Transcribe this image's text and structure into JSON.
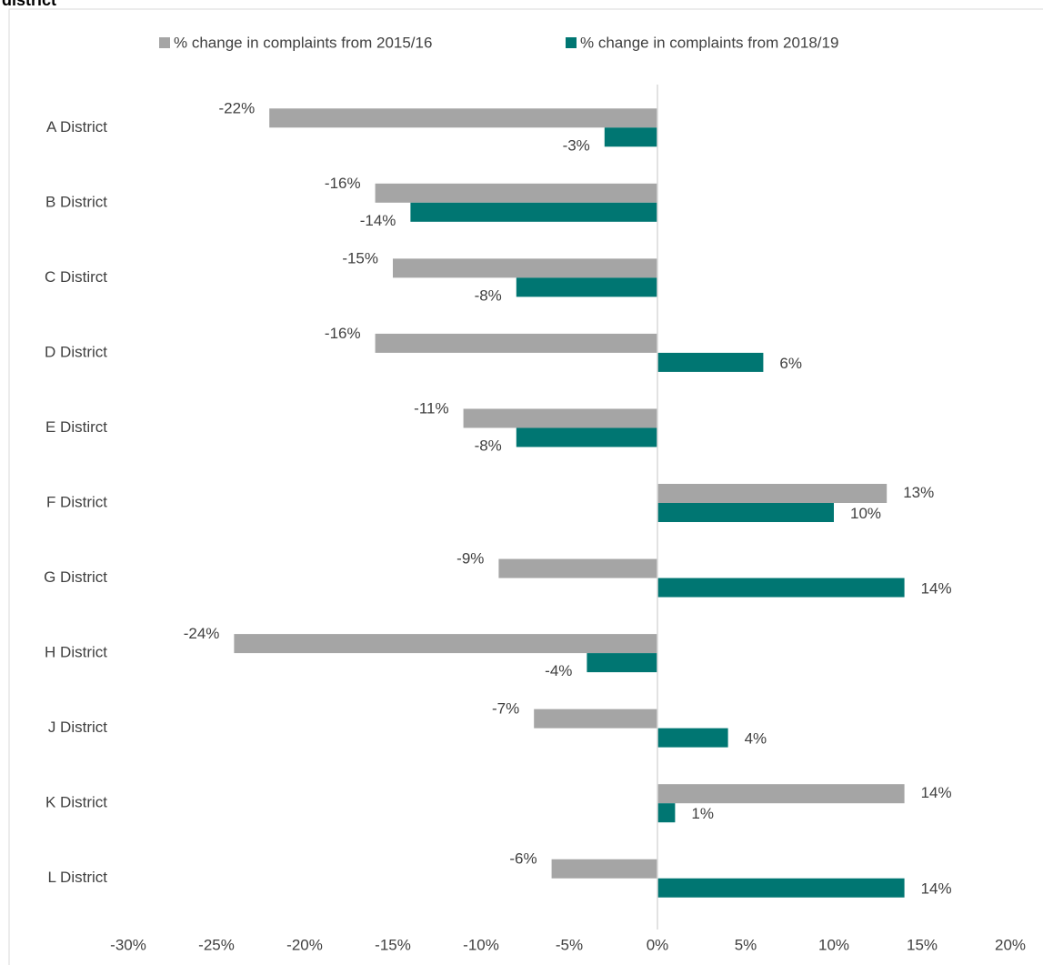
{
  "chart_data": {
    "type": "bar",
    "orientation": "horizontal",
    "title": "district",
    "categories": [
      "A District",
      "B District",
      "C Distirct",
      "D District",
      "E Distirct",
      "F District",
      "G District",
      "H District",
      "J District",
      "K District",
      "L District"
    ],
    "series": [
      {
        "name": "% change in complaints from 2015/16",
        "color": "#a5a5a5",
        "values": [
          -22,
          -16,
          -15,
          -16,
          -11,
          13,
          -9,
          -24,
          -7,
          14,
          -6
        ],
        "value_labels": [
          "-22%",
          "-16%",
          "-15%",
          "-16%",
          "-11%",
          "13%",
          "-9%",
          "-24%",
          "-7%",
          "14%",
          "-6%"
        ]
      },
      {
        "name": "% change in complaints from 2018/19",
        "color": "#007672",
        "values": [
          -3,
          -14,
          -8,
          6,
          -8,
          10,
          14,
          -4,
          4,
          1,
          14
        ],
        "value_labels": [
          "-3%",
          "-14%",
          "-8%",
          "6%",
          "-8%",
          "10%",
          "14%",
          "-4%",
          "4%",
          "1%",
          "14%"
        ]
      }
    ],
    "xlim": [
      -30,
      20
    ],
    "xticks": [
      {
        "value": -30,
        "label": "-30%"
      },
      {
        "value": -25,
        "label": "-25%"
      },
      {
        "value": -20,
        "label": "-20%"
      },
      {
        "value": -15,
        "label": "-15%"
      },
      {
        "value": -10,
        "label": "-10%"
      },
      {
        "value": -5,
        "label": "-5%"
      },
      {
        "value": 0,
        "label": "0%"
      },
      {
        "value": 5,
        "label": "5%"
      },
      {
        "value": 10,
        "label": "10%"
      },
      {
        "value": 15,
        "label": "15%"
      },
      {
        "value": 20,
        "label": "20%"
      }
    ],
    "legend": "top"
  }
}
